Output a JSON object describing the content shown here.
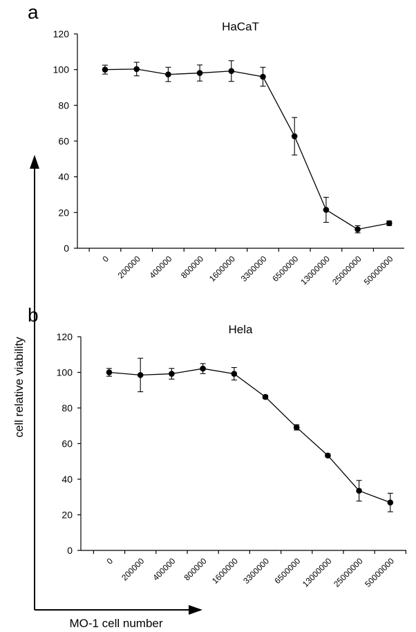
{
  "y_axis_label": "cell relative viability",
  "x_axis_label": "MO-1 cell number",
  "chart_data": [
    {
      "type": "line",
      "panel": "a",
      "title": "HaCaT",
      "categories": [
        "0",
        "200000",
        "400000",
        "800000",
        "1600000",
        "3300000",
        "6500000",
        "13000000",
        "25000000",
        "50000000"
      ],
      "values": [
        100,
        100.3,
        97.3,
        98.1,
        99.2,
        96.0,
        62.7,
        21.5,
        10.6,
        14.0
      ],
      "errors": [
        2.5,
        3.8,
        4.0,
        4.5,
        5.8,
        5.3,
        10.5,
        7.0,
        2.0,
        1.3
      ],
      "ylim": [
        0,
        120
      ],
      "yticks": [
        0,
        20,
        40,
        60,
        80,
        100,
        120
      ]
    },
    {
      "type": "line",
      "panel": "b",
      "title": "Hela",
      "categories": [
        "0",
        "200000",
        "400000",
        "800000",
        "1600000",
        "3300000",
        "6500000",
        "13000000",
        "25000000",
        "50000000"
      ],
      "values": [
        100,
        98.5,
        99.2,
        102.1,
        99.2,
        86.2,
        69.1,
        53.3,
        33.5,
        26.9
      ],
      "errors": [
        2.2,
        9.4,
        3.0,
        2.8,
        3.5,
        1.0,
        1.5,
        0.8,
        5.8,
        5.2
      ],
      "ylim": [
        0,
        120
      ],
      "yticks": [
        0,
        20,
        40,
        60,
        80,
        100,
        120
      ]
    }
  ]
}
